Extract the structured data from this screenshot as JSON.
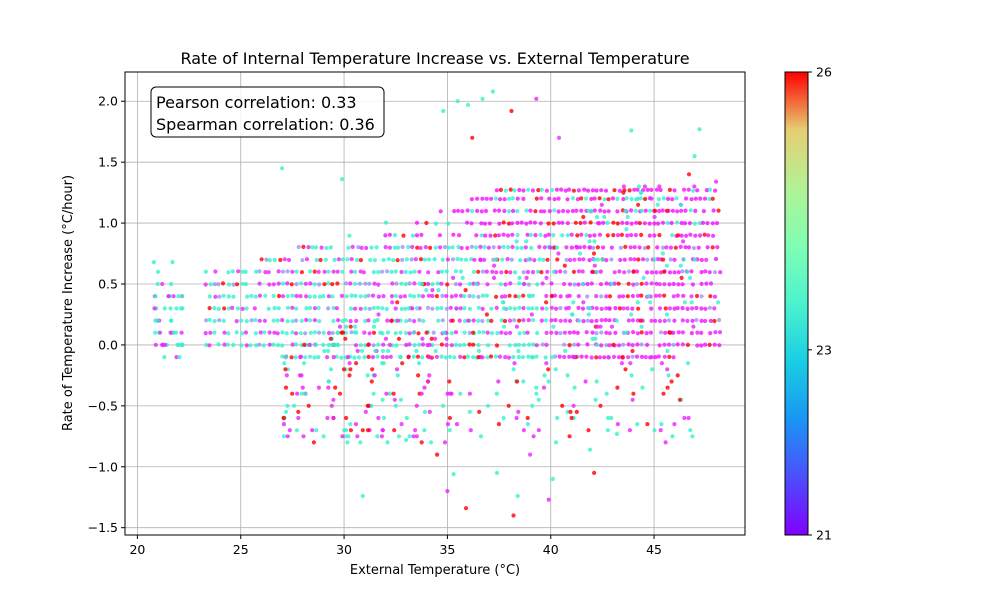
{
  "chart_data": {
    "type": "scatter",
    "title": "Rate of Internal Temperature Increase vs. External Temperature",
    "xlabel": "External Temperature (°C)",
    "ylabel": "Rate of Temperature Increase (°C/hour)",
    "xlim": [
      19.4,
      49.4
    ],
    "ylim": [
      -1.56,
      2.24
    ],
    "xticks": [
      20,
      25,
      30,
      35,
      40,
      45
    ],
    "yticks": [
      -1.5,
      -1.0,
      -0.5,
      0.0,
      0.5,
      1.0,
      1.5,
      2.0
    ],
    "x_tick_labels": [
      "20",
      "25",
      "30",
      "35",
      "40",
      "45"
    ],
    "y_tick_labels": [
      "−1.5",
      "−1.0",
      "−0.5",
      "0.0",
      "0.5",
      "1.0",
      "1.5",
      "2.0"
    ],
    "grid": true,
    "colormap": "rainbow",
    "color_variable_range": [
      21,
      26
    ],
    "colorbar_tick_labels": [
      {
        "value": 26,
        "label": "26"
      },
      {
        "value": 23,
        "label": "23"
      },
      {
        "value": 21,
        "label": "21"
      }
    ],
    "annotation": {
      "lines": [
        "Pearson correlation: 0.33",
        "Spearman correlation: 0.36"
      ],
      "placement": "top-left"
    },
    "point_summary": {
      "x_range": [
        20.7,
        48.2
      ],
      "y_bands": [
        -0.1,
        0.0,
        0.1,
        0.2,
        0.3,
        0.4,
        0.5,
        0.6,
        0.7,
        0.8,
        0.9,
        1.0,
        1.1,
        1.2,
        1.27
      ],
      "note_outliers_y_range": [
        -1.4,
        2.08
      ]
    },
    "points": [
      {
        "x": 20.8,
        "y": 0.68,
        "c": 23.0
      },
      {
        "x": 21.0,
        "y": 0.6,
        "c": 23.0
      },
      {
        "x": 21.2,
        "y": 0.5,
        "c": 21.3
      },
      {
        "x": 21.5,
        "y": 0.4,
        "c": 21.2
      },
      {
        "x": 21.7,
        "y": 0.68,
        "c": 23.0
      },
      {
        "x": 21.1,
        "y": 0.1,
        "c": 21.4
      },
      {
        "x": 21.6,
        "y": 0.3,
        "c": 23.0
      },
      {
        "x": 22.0,
        "y": 0.0,
        "c": 23.0
      },
      {
        "x": 21.3,
        "y": -0.1,
        "c": 23.0
      },
      {
        "x": 27.0,
        "y": 1.45,
        "c": 23.0
      },
      {
        "x": 29.9,
        "y": 1.36,
        "c": 23.0
      },
      {
        "x": 30.1,
        "y": -0.6,
        "c": 26.0
      },
      {
        "x": 30.1,
        "y": -0.7,
        "c": 23.0
      },
      {
        "x": 30.9,
        "y": -1.24,
        "c": 23.0
      },
      {
        "x": 32.1,
        "y": -0.8,
        "c": 23.0
      },
      {
        "x": 33.0,
        "y": -0.78,
        "c": 23.0
      },
      {
        "x": 34.5,
        "y": -0.9,
        "c": 26.0
      },
      {
        "x": 34.8,
        "y": 1.92,
        "c": 23.0
      },
      {
        "x": 35.0,
        "y": -1.2,
        "c": 21.2
      },
      {
        "x": 35.3,
        "y": -1.06,
        "c": 23.0
      },
      {
        "x": 35.5,
        "y": 2.0,
        "c": 23.0
      },
      {
        "x": 35.9,
        "y": -1.34,
        "c": 26.0
      },
      {
        "x": 36.0,
        "y": 1.97,
        "c": 23.0
      },
      {
        "x": 36.2,
        "y": 1.7,
        "c": 26.0
      },
      {
        "x": 36.7,
        "y": 2.02,
        "c": 23.0
      },
      {
        "x": 37.2,
        "y": 2.08,
        "c": 23.0
      },
      {
        "x": 37.4,
        "y": -1.05,
        "c": 23.0
      },
      {
        "x": 38.1,
        "y": 1.92,
        "c": 26.0
      },
      {
        "x": 38.2,
        "y": -1.4,
        "c": 26.0
      },
      {
        "x": 38.4,
        "y": -1.24,
        "c": 23.0
      },
      {
        "x": 38.7,
        "y": -0.7,
        "c": 21.2
      },
      {
        "x": 39.0,
        "y": -0.9,
        "c": 21.3
      },
      {
        "x": 39.3,
        "y": 2.02,
        "c": 21.2
      },
      {
        "x": 39.9,
        "y": -1.27,
        "c": 21.2
      },
      {
        "x": 40.1,
        "y": -1.1,
        "c": 23.0
      },
      {
        "x": 40.4,
        "y": 1.7,
        "c": 21.3
      },
      {
        "x": 42.1,
        "y": -1.05,
        "c": 26.0
      },
      {
        "x": 41.9,
        "y": -0.86,
        "c": 23.0
      },
      {
        "x": 43.2,
        "y": -0.73,
        "c": 23.0
      },
      {
        "x": 44.0,
        "y": -0.4,
        "c": 26.0
      },
      {
        "x": 43.9,
        "y": 1.76,
        "c": 23.0
      },
      {
        "x": 47.2,
        "y": 1.77,
        "c": 23.0
      },
      {
        "x": 48.0,
        "y": 1.34,
        "c": 21.2
      },
      {
        "x": 48.1,
        "y": 0.35,
        "c": 23.0
      }
    ]
  }
}
